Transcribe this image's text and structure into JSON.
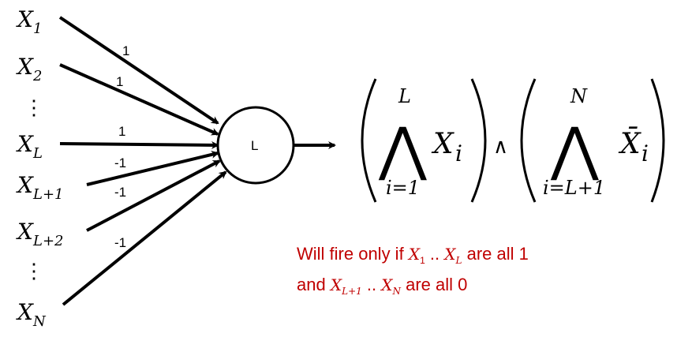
{
  "inputs": {
    "x1": {
      "base": "X",
      "sub": "1"
    },
    "x2": {
      "base": "X",
      "sub": "2"
    },
    "xl": {
      "base": "X",
      "sub": "L"
    },
    "xl1": {
      "base": "X",
      "sub": "L+1"
    },
    "xl2": {
      "base": "X",
      "sub": "L+2"
    },
    "xn": {
      "base": "X",
      "sub": "N"
    },
    "vdots": "⋮"
  },
  "weights": {
    "w1": "1",
    "w2": "1",
    "wl": "1",
    "wl1": "-1",
    "wl2": "-1",
    "wn": "-1"
  },
  "neuron": {
    "threshold": "L"
  },
  "formula": {
    "op": "⋀",
    "left_upper": "L",
    "left_lower": "i=1",
    "left_term": "X",
    "left_term_sub": "i",
    "and_symbol": "∧",
    "right_upper": "N",
    "right_lower": "i=L+1",
    "right_term": "X̄",
    "right_term_sub": "i"
  },
  "caption": {
    "line1_prefix": "Will fire only if",
    "x1_base": "X",
    "x1_sub": "1",
    "dots": "..",
    "xl_base": "X",
    "xl_sub": "L",
    "line1_suffix": "are all 1",
    "line2_prefix": "and",
    "xl1_base": "X",
    "xl1_sub": "L+1",
    "xn_base": "X",
    "xn_sub": "N",
    "line2_suffix": "are all 0"
  },
  "colors": {
    "caption": "#c00000",
    "line": "#000000"
  }
}
